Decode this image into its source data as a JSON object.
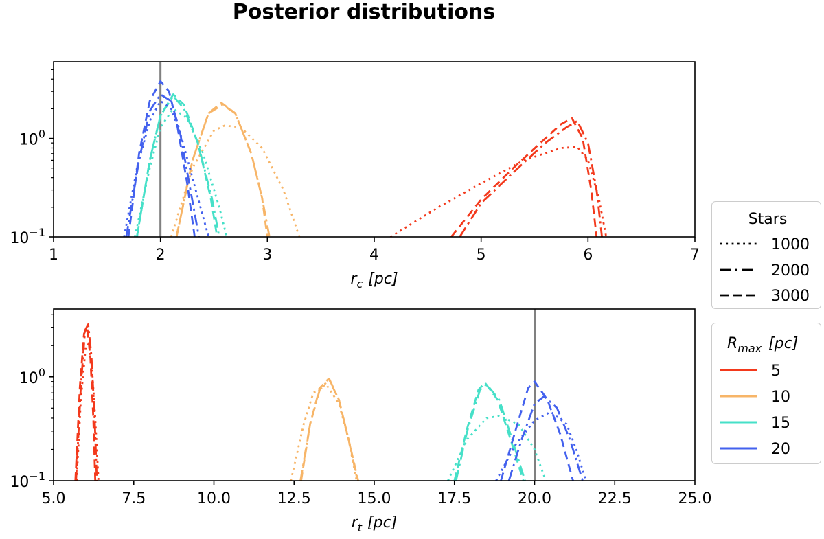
{
  "title": "Posterior distributions",
  "legends": {
    "stars": {
      "title": "Stars",
      "entries": [
        {
          "label": "1000",
          "linestyle": "dotted"
        },
        {
          "label": "2000",
          "linestyle": "dashdot"
        },
        {
          "label": "3000",
          "linestyle": "dashed"
        }
      ]
    },
    "rmax": {
      "title_main": "R",
      "title_sub": "max",
      "title_unit": "[pc]",
      "entries": [
        {
          "label": "5",
          "color": "#f3391c"
        },
        {
          "label": "10",
          "color": "#f7b568"
        },
        {
          "label": "15",
          "color": "#46e0c8"
        },
        {
          "label": "20",
          "color": "#4361ee"
        }
      ]
    }
  },
  "chart_data": [
    {
      "type": "line",
      "xlabel_main": "r",
      "xlabel_sub": "c",
      "xlabel_unit": "[pc]",
      "xlim": [
        1,
        7
      ],
      "ylim": [
        0.1,
        6
      ],
      "yscale": "log",
      "xticks": [
        "1",
        "2",
        "3",
        "4",
        "5",
        "6",
        "7"
      ],
      "yticks": [
        {
          "base": "10",
          "exp": "0",
          "value": 1
        },
        {
          "base": "10",
          "exp": "−1",
          "value": 0.1
        }
      ],
      "reference_line_x": 2,
      "series": [
        {
          "rmax": "5",
          "stars": "1000",
          "x": [
            4.15,
            4.6,
            5.0,
            5.4,
            5.75,
            5.9,
            6.0,
            6.1,
            6.17
          ],
          "y": [
            0.1,
            0.2,
            0.35,
            0.6,
            0.8,
            0.82,
            0.6,
            0.25,
            0.1
          ]
        },
        {
          "rmax": "5",
          "stars": "2000",
          "x": [
            4.8,
            5.0,
            5.3,
            5.6,
            5.8,
            5.9,
            6.0,
            6.08,
            6.13
          ],
          "y": [
            0.1,
            0.22,
            0.45,
            0.9,
            1.3,
            1.5,
            0.9,
            0.3,
            0.1
          ]
        },
        {
          "rmax": "5",
          "stars": "3000",
          "x": [
            4.72,
            5.0,
            5.3,
            5.6,
            5.75,
            5.85,
            5.95,
            6.03,
            6.08
          ],
          "y": [
            0.1,
            0.24,
            0.5,
            1.0,
            1.4,
            1.6,
            1.0,
            0.3,
            0.1
          ]
        },
        {
          "rmax": "10",
          "stars": "1000",
          "x": [
            2.1,
            2.3,
            2.5,
            2.6,
            2.75,
            2.95,
            3.15,
            3.3
          ],
          "y": [
            0.1,
            0.5,
            1.2,
            1.35,
            1.3,
            0.8,
            0.3,
            0.1
          ]
        },
        {
          "rmax": "10",
          "stars": "2000",
          "x": [
            2.15,
            2.3,
            2.45,
            2.58,
            2.7,
            2.85,
            2.95,
            3.02
          ],
          "y": [
            0.1,
            0.6,
            1.8,
            2.2,
            1.8,
            0.7,
            0.25,
            0.1
          ]
        },
        {
          "rmax": "10",
          "stars": "3000",
          "x": [
            2.15,
            2.3,
            2.45,
            2.57,
            2.7,
            2.85,
            2.95,
            3.0
          ],
          "y": [
            0.1,
            0.6,
            1.8,
            2.3,
            1.8,
            0.7,
            0.25,
            0.1
          ]
        },
        {
          "rmax": "15",
          "stars": "1000",
          "x": [
            1.76,
            1.9,
            2.0,
            2.12,
            2.25,
            2.4,
            2.55,
            2.62
          ],
          "y": [
            0.1,
            0.5,
            1.3,
            2.0,
            1.6,
            0.7,
            0.2,
            0.1
          ]
        },
        {
          "rmax": "15",
          "stars": "2000",
          "x": [
            1.78,
            1.9,
            2.0,
            2.12,
            2.22,
            2.35,
            2.48,
            2.55
          ],
          "y": [
            0.1,
            0.6,
            1.7,
            2.7,
            2.0,
            0.9,
            0.25,
            0.1
          ]
        },
        {
          "rmax": "15",
          "stars": "3000",
          "x": [
            1.78,
            1.9,
            2.0,
            2.12,
            2.22,
            2.35,
            2.47,
            2.53
          ],
          "y": [
            0.1,
            0.6,
            1.7,
            2.8,
            2.2,
            0.9,
            0.25,
            0.1
          ]
        },
        {
          "rmax": "20",
          "stars": "1000",
          "x": [
            1.66,
            1.78,
            1.9,
            2.0,
            2.1,
            2.2,
            2.33,
            2.45
          ],
          "y": [
            0.1,
            0.5,
            1.5,
            2.4,
            2.0,
            1.0,
            0.3,
            0.1
          ]
        },
        {
          "rmax": "20",
          "stars": "2000",
          "x": [
            1.68,
            1.8,
            1.9,
            2.0,
            2.1,
            2.18,
            2.28,
            2.36
          ],
          "y": [
            0.1,
            0.6,
            1.9,
            2.8,
            2.4,
            1.2,
            0.3,
            0.1
          ]
        },
        {
          "rmax": "20",
          "stars": "3000",
          "x": [
            1.7,
            1.8,
            1.9,
            2.0,
            2.08,
            2.15,
            2.25,
            2.32
          ],
          "y": [
            0.1,
            0.7,
            2.4,
            3.8,
            3.0,
            1.5,
            0.35,
            0.1
          ]
        }
      ]
    },
    {
      "type": "line",
      "xlabel_main": "r",
      "xlabel_sub": "t",
      "xlabel_unit": "[pc]",
      "xlim": [
        5.0,
        25.0
      ],
      "ylim": [
        0.1,
        4.5
      ],
      "yscale": "log",
      "xticks": [
        "5.0",
        "7.5",
        "10.0",
        "12.5",
        "15.0",
        "17.5",
        "20.0",
        "22.5",
        "25.0"
      ],
      "yticks": [
        {
          "base": "10",
          "exp": "0",
          "value": 1
        },
        {
          "base": "10",
          "exp": "−1",
          "value": 0.1
        }
      ],
      "reference_line_x": 20,
      "series": [
        {
          "rmax": "5",
          "stars": "1000",
          "x": [
            5.72,
            5.85,
            6.0,
            6.1,
            6.2,
            6.3,
            6.4
          ],
          "y": [
            0.1,
            0.6,
            1.9,
            2.1,
            1.2,
            0.4,
            0.1
          ]
        },
        {
          "rmax": "5",
          "stars": "2000",
          "x": [
            5.7,
            5.85,
            5.98,
            6.08,
            6.18,
            6.28,
            6.35
          ],
          "y": [
            0.1,
            0.8,
            2.8,
            3.2,
            1.6,
            0.4,
            0.1
          ]
        },
        {
          "rmax": "5",
          "stars": "3000",
          "x": [
            5.68,
            5.82,
            5.95,
            6.05,
            6.15,
            6.24,
            6.3
          ],
          "y": [
            0.1,
            0.8,
            2.6,
            3.0,
            1.5,
            0.4,
            0.1
          ]
        },
        {
          "rmax": "10",
          "stars": "1000",
          "x": [
            12.4,
            12.8,
            13.1,
            13.5,
            13.9,
            14.2,
            14.45
          ],
          "y": [
            0.1,
            0.35,
            0.7,
            0.85,
            0.55,
            0.25,
            0.1
          ]
        },
        {
          "rmax": "10",
          "stars": "2000",
          "x": [
            12.7,
            13.0,
            13.3,
            13.6,
            13.9,
            14.2,
            14.48
          ],
          "y": [
            0.1,
            0.35,
            0.75,
            0.95,
            0.6,
            0.25,
            0.1
          ]
        },
        {
          "rmax": "10",
          "stars": "3000",
          "x": [
            12.72,
            13.0,
            13.3,
            13.58,
            13.9,
            14.2,
            14.5
          ],
          "y": [
            0.1,
            0.35,
            0.78,
            0.96,
            0.6,
            0.25,
            0.1
          ]
        },
        {
          "rmax": "15",
          "stars": "1000",
          "x": [
            17.3,
            17.9,
            18.5,
            18.9,
            19.5,
            20.0,
            20.35
          ],
          "y": [
            0.1,
            0.25,
            0.4,
            0.42,
            0.35,
            0.2,
            0.1
          ]
        },
        {
          "rmax": "15",
          "stars": "2000",
          "x": [
            17.55,
            17.9,
            18.3,
            18.5,
            18.9,
            19.3,
            19.7
          ],
          "y": [
            0.1,
            0.3,
            0.75,
            0.85,
            0.6,
            0.25,
            0.1
          ]
        },
        {
          "rmax": "15",
          "stars": "3000",
          "x": [
            17.5,
            17.9,
            18.25,
            18.45,
            18.85,
            19.25,
            19.65
          ],
          "y": [
            0.1,
            0.32,
            0.75,
            0.88,
            0.6,
            0.25,
            0.1
          ]
        },
        {
          "rmax": "20",
          "stars": "1000",
          "x": [
            18.8,
            19.4,
            20.0,
            20.5,
            21.0,
            21.3,
            21.6
          ],
          "y": [
            0.1,
            0.22,
            0.38,
            0.46,
            0.35,
            0.2,
            0.1
          ]
        },
        {
          "rmax": "20",
          "stars": "2000",
          "x": [
            19.2,
            19.6,
            20.0,
            20.3,
            20.7,
            21.1,
            21.5
          ],
          "y": [
            0.1,
            0.25,
            0.55,
            0.65,
            0.5,
            0.25,
            0.1
          ]
        },
        {
          "rmax": "20",
          "stars": "3000",
          "x": [
            18.95,
            19.4,
            19.8,
            20.0,
            20.4,
            20.8,
            21.2
          ],
          "y": [
            0.1,
            0.3,
            0.78,
            0.9,
            0.6,
            0.28,
            0.1
          ]
        }
      ]
    }
  ]
}
